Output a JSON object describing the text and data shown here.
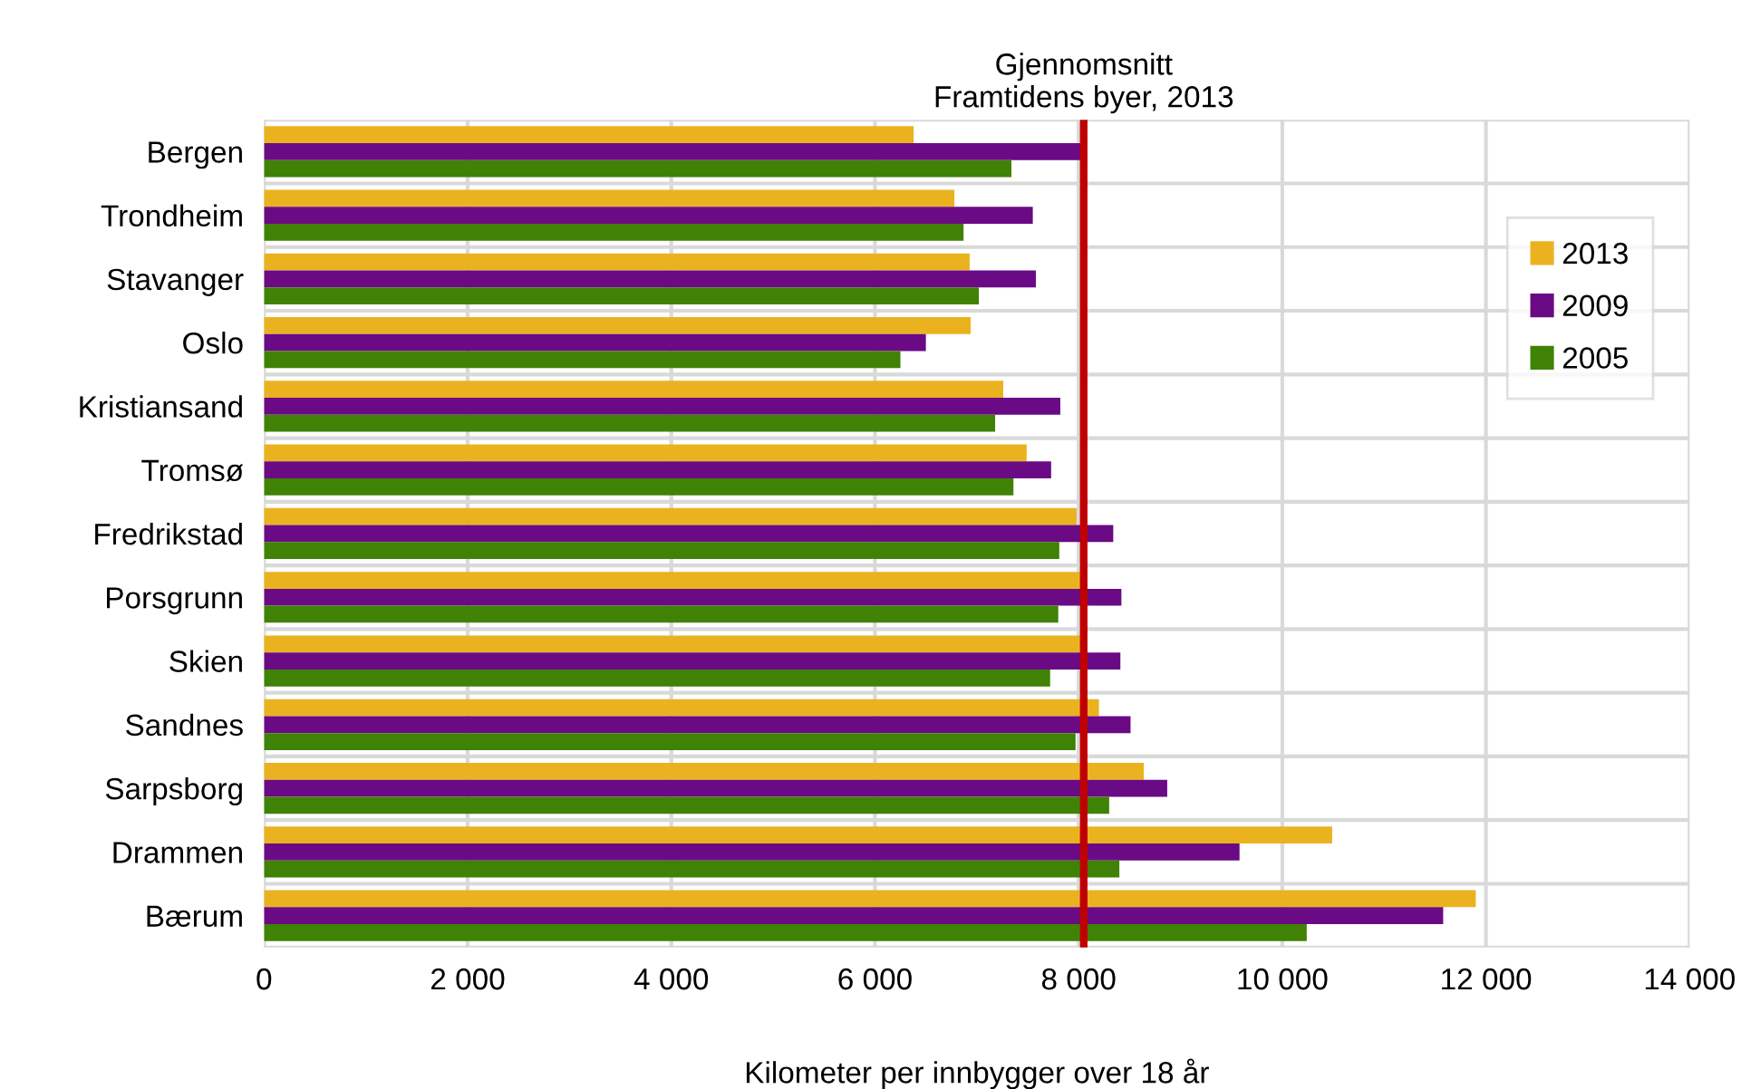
{
  "chart_data": {
    "type": "bar",
    "orientation": "horizontal",
    "xlabel": "Kilometer per innbygger over 18 år",
    "categories": [
      "Bergen",
      "Trondheim",
      "Stavanger",
      "Oslo",
      "Kristiansand",
      "Tromsø",
      "Fredrikstad",
      "Porsgrunn",
      "Skien",
      "Sandnes",
      "Sarpsborg",
      "Drammen",
      "Bærum"
    ],
    "series": [
      {
        "name": "2013",
        "color": "#ebb220",
        "values": [
          6380,
          6780,
          6930,
          6940,
          7260,
          7490,
          7980,
          8020,
          8020,
          8200,
          8640,
          10490,
          11900
        ]
      },
      {
        "name": "2009",
        "color": "#6a0a85",
        "values": [
          8040,
          7550,
          7580,
          6500,
          7820,
          7730,
          8340,
          8420,
          8410,
          8510,
          8870,
          9580,
          11580
        ]
      },
      {
        "name": "2005",
        "color": "#3f8205",
        "values": [
          7340,
          6870,
          7020,
          6250,
          7180,
          7360,
          7810,
          7800,
          7720,
          7970,
          8300,
          8400,
          10240
        ]
      }
    ],
    "xlim": [
      0,
      14000
    ],
    "xticks": [
      {
        "value": 0,
        "label": "0"
      },
      {
        "value": 2000,
        "label": "2 000"
      },
      {
        "value": 4000,
        "label": "4 000"
      },
      {
        "value": 6000,
        "label": "6 000"
      },
      {
        "value": 8000,
        "label": "8 000"
      },
      {
        "value": 10000,
        "label": "10 000"
      },
      {
        "value": 12000,
        "label": "12 000"
      },
      {
        "value": 14000,
        "label": "14 000"
      }
    ],
    "ref_lines": [
      {
        "axis": "x",
        "value": 8050,
        "label": "Gjennomsnitt\nFramtidens byer, 2013",
        "color": "#c00000"
      }
    ],
    "grid": true,
    "legend": "top right"
  }
}
